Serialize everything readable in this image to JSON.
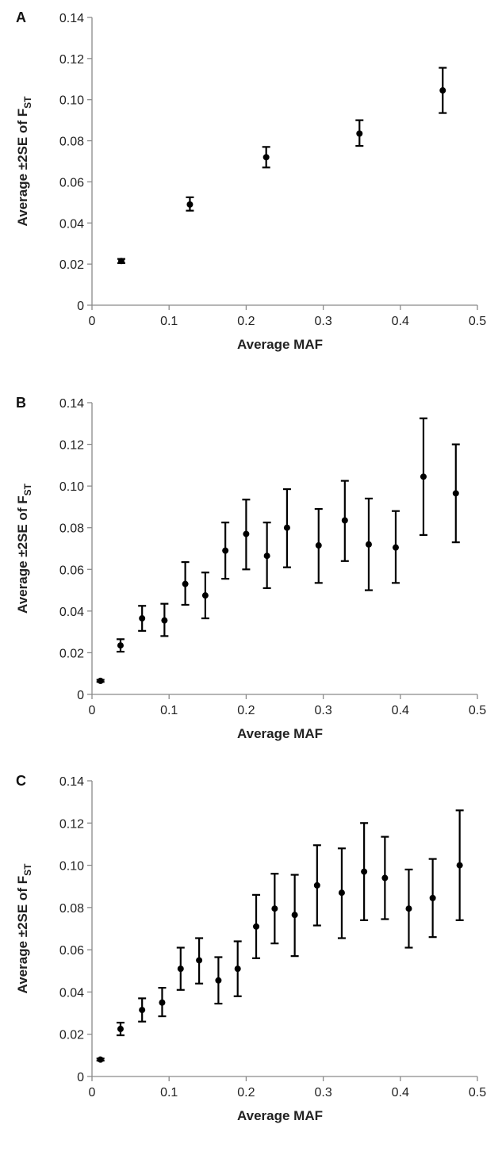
{
  "chart_data": [
    {
      "panel": "A",
      "type": "scatter",
      "xlabel": "Average MAF",
      "ylabel": {
        "main": "Average ±2SE of F",
        "sub": "ST"
      },
      "xlim": [
        0,
        0.5
      ],
      "ylim": [
        0,
        0.14
      ],
      "xticks": [
        "0",
        "0.1",
        "0.2",
        "0.3",
        "0.4",
        "0.5"
      ],
      "yticks": [
        "0",
        "0.02",
        "0.04",
        "0.06",
        "0.08",
        "0.10",
        "0.12",
        "0.14"
      ],
      "grid": false,
      "points": [
        {
          "x": 0.038,
          "y": 0.0215,
          "lo": 0.0205,
          "hi": 0.0225
        },
        {
          "x": 0.127,
          "y": 0.049,
          "lo": 0.046,
          "hi": 0.0525
        },
        {
          "x": 0.226,
          "y": 0.072,
          "lo": 0.067,
          "hi": 0.077
        },
        {
          "x": 0.347,
          "y": 0.0835,
          "lo": 0.0775,
          "hi": 0.09
        },
        {
          "x": 0.455,
          "y": 0.1045,
          "lo": 0.0935,
          "hi": 0.1155
        }
      ]
    },
    {
      "panel": "B",
      "type": "scatter",
      "xlabel": "Average MAF",
      "ylabel": {
        "main": "Average ±2SE of F",
        "sub": "ST"
      },
      "xlim": [
        0,
        0.5
      ],
      "ylim": [
        0,
        0.14
      ],
      "xticks": [
        "0",
        "0.1",
        "0.2",
        "0.3",
        "0.4",
        "0.5"
      ],
      "yticks": [
        "0",
        "0.02",
        "0.04",
        "0.06",
        "0.08",
        "0.10",
        "0.12",
        "0.14"
      ],
      "grid": false,
      "points": [
        {
          "x": 0.011,
          "y": 0.0065,
          "lo": 0.006,
          "hi": 0.007
        },
        {
          "x": 0.037,
          "y": 0.0235,
          "lo": 0.0205,
          "hi": 0.0265
        },
        {
          "x": 0.065,
          "y": 0.0365,
          "lo": 0.0305,
          "hi": 0.0425
        },
        {
          "x": 0.094,
          "y": 0.0355,
          "lo": 0.028,
          "hi": 0.0435
        },
        {
          "x": 0.121,
          "y": 0.053,
          "lo": 0.043,
          "hi": 0.0635
        },
        {
          "x": 0.147,
          "y": 0.0475,
          "lo": 0.0365,
          "hi": 0.0585
        },
        {
          "x": 0.173,
          "y": 0.069,
          "lo": 0.0555,
          "hi": 0.0825
        },
        {
          "x": 0.2,
          "y": 0.077,
          "lo": 0.06,
          "hi": 0.0935
        },
        {
          "x": 0.227,
          "y": 0.0665,
          "lo": 0.051,
          "hi": 0.0825
        },
        {
          "x": 0.253,
          "y": 0.08,
          "lo": 0.061,
          "hi": 0.0985
        },
        {
          "x": 0.294,
          "y": 0.0715,
          "lo": 0.0535,
          "hi": 0.089
        },
        {
          "x": 0.328,
          "y": 0.0835,
          "lo": 0.064,
          "hi": 0.1025
        },
        {
          "x": 0.359,
          "y": 0.072,
          "lo": 0.05,
          "hi": 0.094
        },
        {
          "x": 0.394,
          "y": 0.0705,
          "lo": 0.0535,
          "hi": 0.088
        },
        {
          "x": 0.43,
          "y": 0.1045,
          "lo": 0.0765,
          "hi": 0.1325
        },
        {
          "x": 0.472,
          "y": 0.0965,
          "lo": 0.073,
          "hi": 0.12
        }
      ]
    },
    {
      "panel": "C",
      "type": "scatter",
      "xlabel": "Average MAF",
      "ylabel": {
        "main": "Average ±2SE of F",
        "sub": "ST"
      },
      "xlim": [
        0,
        0.5
      ],
      "ylim": [
        0,
        0.14
      ],
      "xticks": [
        "0",
        "0.1",
        "0.2",
        "0.3",
        "0.4",
        "0.5"
      ],
      "yticks": [
        "0",
        "0.02",
        "0.04",
        "0.06",
        "0.08",
        "0.10",
        "0.12",
        "0.14"
      ],
      "grid": false,
      "points": [
        {
          "x": 0.011,
          "y": 0.008,
          "lo": 0.0075,
          "hi": 0.0085
        },
        {
          "x": 0.037,
          "y": 0.0225,
          "lo": 0.0195,
          "hi": 0.0255
        },
        {
          "x": 0.065,
          "y": 0.0315,
          "lo": 0.026,
          "hi": 0.037
        },
        {
          "x": 0.091,
          "y": 0.035,
          "lo": 0.0285,
          "hi": 0.042
        },
        {
          "x": 0.115,
          "y": 0.051,
          "lo": 0.041,
          "hi": 0.061
        },
        {
          "x": 0.139,
          "y": 0.055,
          "lo": 0.044,
          "hi": 0.0655
        },
        {
          "x": 0.164,
          "y": 0.0455,
          "lo": 0.0345,
          "hi": 0.0565
        },
        {
          "x": 0.189,
          "y": 0.051,
          "lo": 0.038,
          "hi": 0.064
        },
        {
          "x": 0.213,
          "y": 0.071,
          "lo": 0.056,
          "hi": 0.086
        },
        {
          "x": 0.237,
          "y": 0.0795,
          "lo": 0.063,
          "hi": 0.096
        },
        {
          "x": 0.263,
          "y": 0.0765,
          "lo": 0.057,
          "hi": 0.0955
        },
        {
          "x": 0.292,
          "y": 0.0905,
          "lo": 0.0715,
          "hi": 0.1095
        },
        {
          "x": 0.324,
          "y": 0.087,
          "lo": 0.0655,
          "hi": 0.108
        },
        {
          "x": 0.353,
          "y": 0.097,
          "lo": 0.074,
          "hi": 0.12
        },
        {
          "x": 0.38,
          "y": 0.094,
          "lo": 0.0745,
          "hi": 0.1135
        },
        {
          "x": 0.411,
          "y": 0.0795,
          "lo": 0.061,
          "hi": 0.098
        },
        {
          "x": 0.442,
          "y": 0.0845,
          "lo": 0.066,
          "hi": 0.103
        },
        {
          "x": 0.477,
          "y": 0.1,
          "lo": 0.074,
          "hi": 0.126
        }
      ]
    }
  ]
}
